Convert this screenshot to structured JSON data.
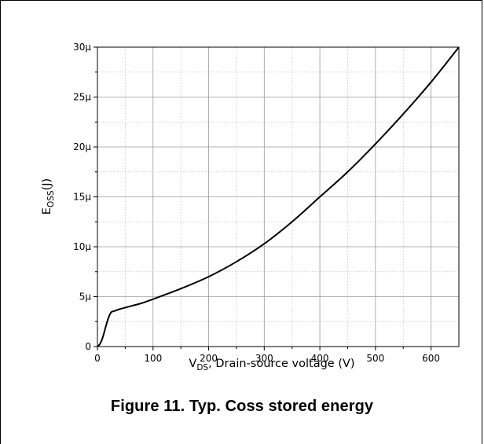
{
  "caption": "Figure 11. Typ. Coss stored energy",
  "chart_data": {
    "type": "line",
    "title": "",
    "xlabel": {
      "main": "V",
      "sub": "DS",
      "rest": ", Drain-source voltage (V)"
    },
    "ylabel": {
      "main": "E",
      "sub": "OSS",
      "rest": "(J)"
    },
    "xlim": [
      0,
      650
    ],
    "ylim": [
      0,
      3e-05
    ],
    "x_ticks": [
      0,
      100,
      200,
      300,
      400,
      500,
      600
    ],
    "x_tick_labels": [
      "0",
      "100",
      "200",
      "300",
      "400",
      "500",
      "600"
    ],
    "y_ticks": [
      0,
      5e-06,
      1e-05,
      1.5e-05,
      2e-05,
      2.5e-05,
      3e-05
    ],
    "y_tick_labels": [
      "0",
      "5µ",
      "10µ",
      "15µ",
      "20µ",
      "25µ",
      "30µ"
    ],
    "grid": true,
    "legend": "none",
    "line_color": "#000000",
    "series": [
      {
        "x": [
          0,
          5,
          10,
          15,
          20,
          25,
          30,
          40,
          60,
          80,
          100,
          150,
          200,
          250,
          300,
          350,
          400,
          450,
          500,
          550,
          600,
          650
        ],
        "values": [
          0,
          3e-07,
          1e-06,
          2e-06,
          2.9e-06,
          3.45e-06,
          3.55e-06,
          3.75e-06,
          4.05e-06,
          4.35e-06,
          4.75e-06,
          5.8e-06,
          7e-06,
          8.5e-06,
          1.03e-05,
          1.25e-05,
          1.5e-05,
          1.75e-05,
          2.03e-05,
          2.33e-05,
          2.65e-05,
          3e-05
        ]
      }
    ]
  }
}
